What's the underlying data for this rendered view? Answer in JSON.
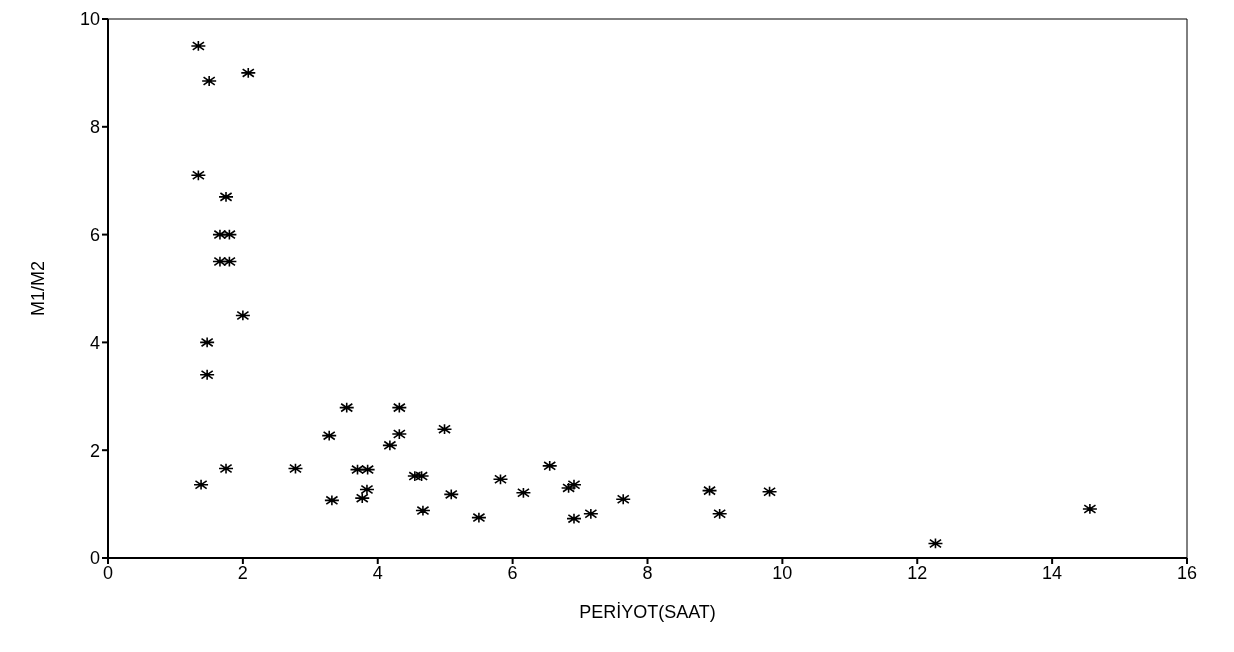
{
  "chart_data": {
    "type": "scatter",
    "xlabel": "PERİYOT(SAAT)",
    "ylabel": "M1/M2",
    "xlim": [
      0,
      16
    ],
    "xticks": [
      0,
      2,
      4,
      6,
      8,
      10,
      12,
      14,
      16
    ],
    "ylim": [
      0,
      10
    ],
    "yticks": [
      0,
      2,
      4,
      6,
      8,
      10
    ],
    "grid": false,
    "legend": false,
    "marker": "cross",
    "series": [
      {
        "color": "#000000",
        "x": [
          1.34,
          1.5,
          2.08,
          1.34,
          1.75,
          1.66,
          1.8,
          1.66,
          1.8,
          2.0,
          1.47,
          1.47,
          1.38,
          1.75,
          2.78,
          3.54,
          3.28,
          3.32,
          3.7,
          3.85,
          3.84,
          3.77,
          4.32,
          4.32,
          4.18,
          4.55,
          4.65,
          4.99,
          4.67,
          5.09,
          5.5,
          5.82,
          6.16,
          6.55,
          6.83,
          6.91,
          6.91,
          7.16,
          7.64,
          8.92,
          9.07,
          9.81,
          12.27,
          14.56
        ],
        "values": [
          9.5,
          8.85,
          9.0,
          7.1,
          6.7,
          6.0,
          6.0,
          5.5,
          5.5,
          4.5,
          4.0,
          3.4,
          1.36,
          1.66,
          1.66,
          2.79,
          2.27,
          1.07,
          1.64,
          1.64,
          1.27,
          1.11,
          2.79,
          2.3,
          2.09,
          1.52,
          1.52,
          2.39,
          0.88,
          1.18,
          0.75,
          1.46,
          1.21,
          1.71,
          1.3,
          1.36,
          0.73,
          0.82,
          1.09,
          1.25,
          0.82,
          1.23,
          0.27,
          0.91
        ]
      }
    ]
  }
}
